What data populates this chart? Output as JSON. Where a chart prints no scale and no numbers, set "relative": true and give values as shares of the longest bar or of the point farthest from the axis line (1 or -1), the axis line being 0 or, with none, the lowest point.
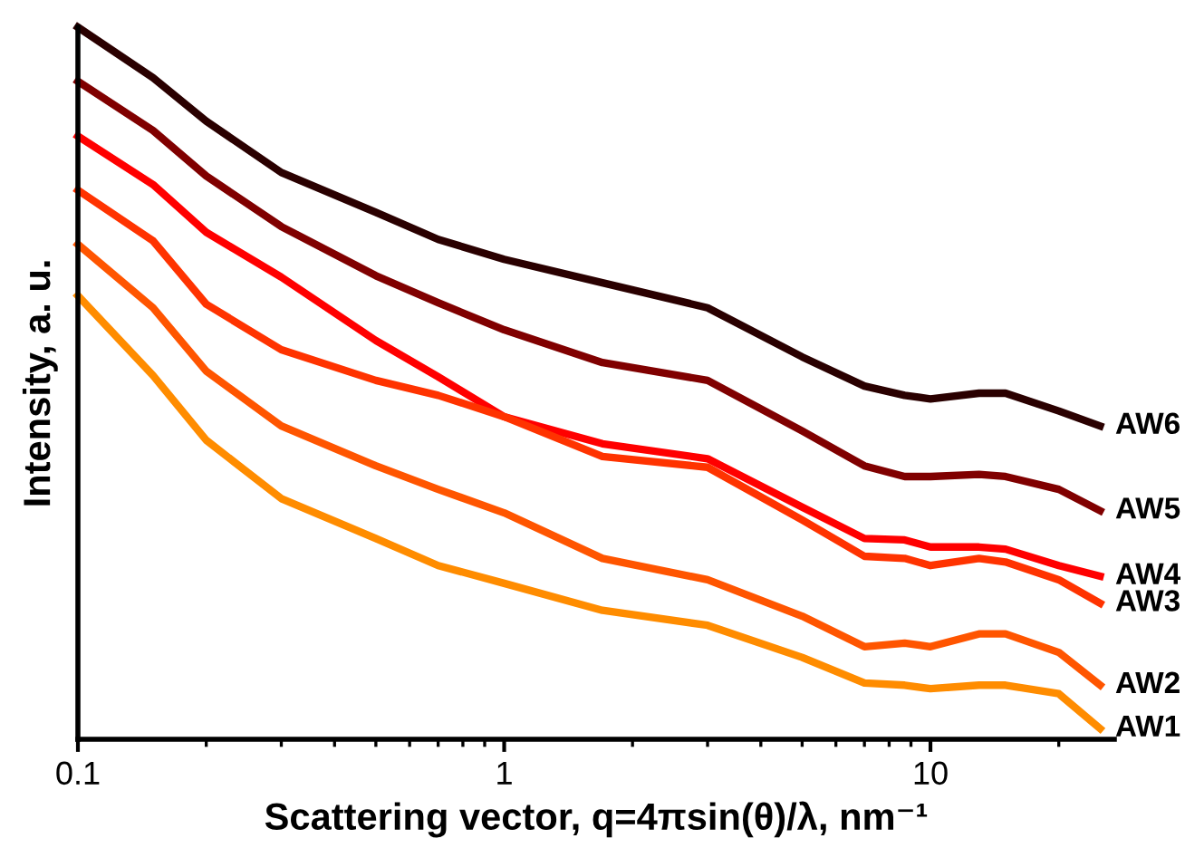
{
  "chart_data": {
    "type": "line",
    "xlabel": "Scattering vector, q=4πsin(θ)/λ, nm⁻¹",
    "ylabel": "Intensity, a. u.",
    "relative": true,
    "log": "x",
    "x": [
      0.1,
      0.15,
      0.2,
      0.3,
      0.5,
      0.7,
      1,
      1.7,
      3,
      5,
      7,
      8.7,
      10,
      13,
      15,
      20,
      25
    ],
    "xlim": [
      0.1,
      27
    ],
    "xticks": [
      0.1,
      1,
      10
    ],
    "grid": false,
    "legend": false,
    "marker": "none",
    "line_style": "solid",
    "series": [
      {
        "name": "AW6",
        "color": "#2a0000",
        "values": [
          1.0,
          0.929,
          0.868,
          0.796,
          0.74,
          0.702,
          0.674,
          0.641,
          0.606,
          0.537,
          0.496,
          0.483,
          0.478,
          0.486,
          0.486,
          0.461,
          0.44
        ]
      },
      {
        "name": "AW5",
        "color": "#800000",
        "values": [
          0.924,
          0.855,
          0.791,
          0.72,
          0.651,
          0.613,
          0.575,
          0.529,
          0.504,
          0.433,
          0.384,
          0.369,
          0.369,
          0.372,
          0.369,
          0.351,
          0.321
        ]
      },
      {
        "name": "AW4",
        "color": "#ff0000",
        "values": [
          0.847,
          0.779,
          0.712,
          0.649,
          0.56,
          0.509,
          0.453,
          0.415,
          0.394,
          0.326,
          0.282,
          0.28,
          0.27,
          0.27,
          0.267,
          0.244,
          0.229
        ]
      },
      {
        "name": "AW3",
        "color": "#ff3300",
        "values": [
          0.771,
          0.7,
          0.611,
          0.547,
          0.504,
          0.483,
          0.453,
          0.397,
          0.382,
          0.308,
          0.257,
          0.254,
          0.244,
          0.254,
          0.249,
          0.224,
          0.191
        ]
      },
      {
        "name": "AW2",
        "color": "#ff5500",
        "values": [
          0.695,
          0.606,
          0.517,
          0.44,
          0.384,
          0.351,
          0.318,
          0.254,
          0.224,
          0.173,
          0.13,
          0.135,
          0.13,
          0.148,
          0.148,
          0.122,
          0.076
        ]
      },
      {
        "name": "AW1",
        "color": "#ff8c00",
        "values": [
          0.623,
          0.511,
          0.42,
          0.338,
          0.282,
          0.244,
          0.219,
          0.181,
          0.16,
          0.115,
          0.079,
          0.076,
          0.071,
          0.076,
          0.076,
          0.064,
          0.015
        ]
      }
    ]
  }
}
